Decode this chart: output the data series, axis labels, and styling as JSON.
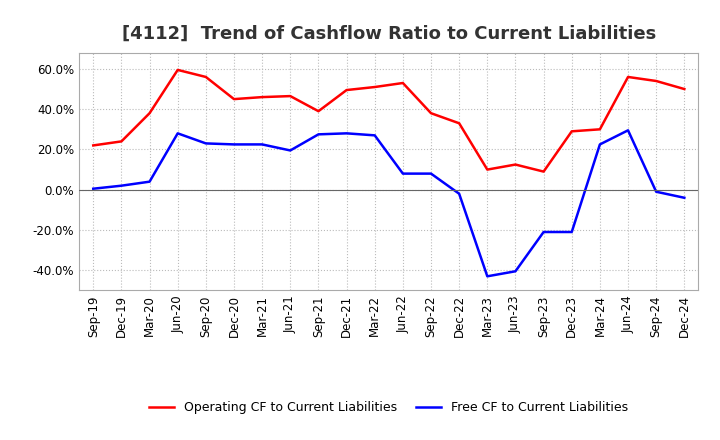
{
  "title": "[4112]  Trend of Cashflow Ratio to Current Liabilities",
  "x_labels": [
    "Sep-19",
    "Dec-19",
    "Mar-20",
    "Jun-20",
    "Sep-20",
    "Dec-20",
    "Mar-21",
    "Jun-21",
    "Sep-21",
    "Dec-21",
    "Mar-22",
    "Jun-22",
    "Sep-22",
    "Dec-22",
    "Mar-23",
    "Jun-23",
    "Sep-23",
    "Dec-23",
    "Mar-24",
    "Jun-24",
    "Sep-24",
    "Dec-24"
  ],
  "operating_cf": [
    22.0,
    24.0,
    38.0,
    59.5,
    56.0,
    45.0,
    46.0,
    46.5,
    39.0,
    49.5,
    51.0,
    53.0,
    38.0,
    33.0,
    10.0,
    12.5,
    9.0,
    29.0,
    30.0,
    56.0,
    54.0,
    50.0
  ],
  "free_cf": [
    0.5,
    2.0,
    4.0,
    28.0,
    23.0,
    22.5,
    22.5,
    19.5,
    27.5,
    28.0,
    27.0,
    8.0,
    8.0,
    -2.0,
    -43.0,
    -40.5,
    -21.0,
    -21.0,
    22.5,
    29.5,
    -1.0,
    -4.0
  ],
  "operating_color": "#ff0000",
  "free_color": "#0000ff",
  "ylim": [
    -50,
    68
  ],
  "yticks": [
    -40.0,
    -20.0,
    0.0,
    20.0,
    40.0,
    60.0
  ],
  "background_color": "#ffffff",
  "plot_bg_color": "#ffffff",
  "grid_color": "#bbbbbb",
  "title_fontsize": 13,
  "title_color": "#333333",
  "tick_fontsize": 8.5,
  "legend_labels": [
    "Operating CF to Current Liabilities",
    "Free CF to Current Liabilities"
  ]
}
